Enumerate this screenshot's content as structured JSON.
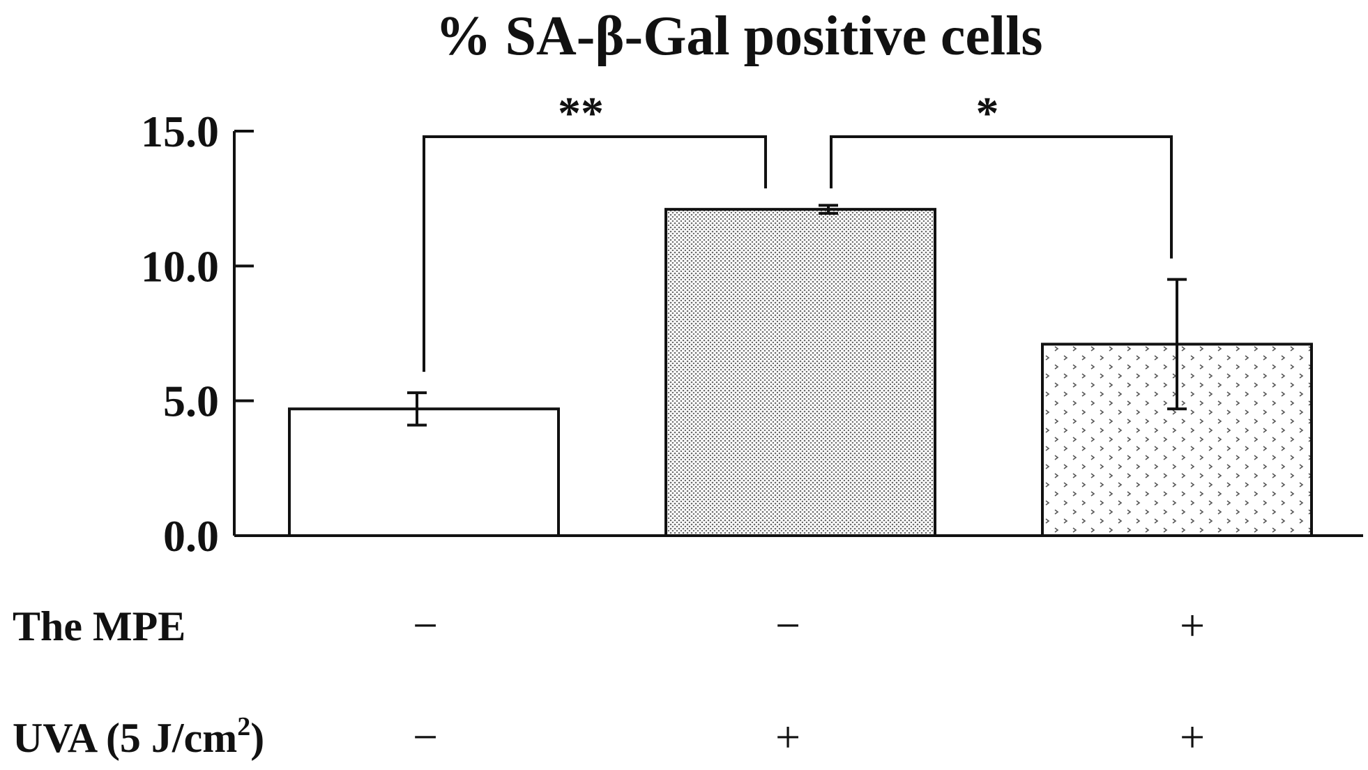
{
  "chart_data": {
    "type": "bar",
    "title": "% SA-β-Gal positive cells",
    "xlabel": "",
    "ylabel": "",
    "ylim": [
      0,
      15
    ],
    "yticks": [
      "0.0",
      "5.0",
      "10.0",
      "15.0"
    ],
    "ytick_values": [
      0,
      5,
      10,
      15
    ],
    "grid": false,
    "legend": "none",
    "categories": [
      "",
      "",
      ""
    ],
    "values": [
      4.7,
      12.1,
      7.1
    ],
    "errors": [
      0.6,
      0.15,
      2.4
    ],
    "bar_patterns": [
      "none",
      "fine-dots",
      "coarse-dots"
    ],
    "bar_fill": "#ffffff",
    "stroke_color": "#111111",
    "condition_rows": [
      {
        "label": "The MPE",
        "signs": [
          "−",
          "−",
          "+"
        ]
      },
      {
        "label": "UVA (5 J/cm",
        "superscript": "2",
        "label_suffix": ")",
        "signs": [
          "−",
          "+",
          "+"
        ]
      }
    ],
    "significance": [
      {
        "from": 0,
        "to": 1,
        "label": "**"
      },
      {
        "from": 1,
        "to": 2,
        "label": "*"
      }
    ]
  }
}
